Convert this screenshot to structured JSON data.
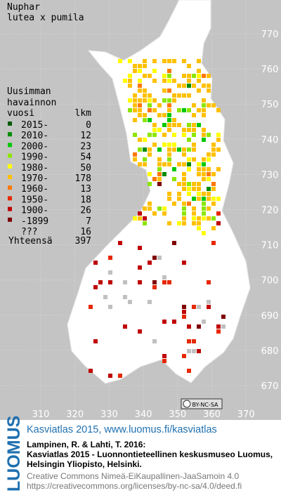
{
  "title": [
    "Nuphar",
    "lutea x pumila"
  ],
  "legend": {
    "header": [
      "Uusimman",
      "havainnon",
      "vuosi"
    ],
    "count_header": "lkm",
    "rows": [
      {
        "label": "2015-",
        "count": 0,
        "color": "#005a00"
      },
      {
        "label": "2010-",
        "count": 12,
        "color": "#008c00"
      },
      {
        "label": "2000-",
        "count": 23,
        "color": "#00c800"
      },
      {
        "label": "1990-",
        "count": 54,
        "color": "#8ce600"
      },
      {
        "label": "1980-",
        "count": 50,
        "color": "#ffff00"
      },
      {
        "label": "1970-",
        "count": 178,
        "color": "#ffc000"
      },
      {
        "label": "1960-",
        "count": 13,
        "color": "#ff7800"
      },
      {
        "label": "1950-",
        "count": 18,
        "color": "#e62800"
      },
      {
        "label": "1900-",
        "count": 26,
        "color": "#c00000"
      },
      {
        "label": "-1899",
        "count": 7,
        "color": "#800000"
      },
      {
        "label": "???",
        "count": 16,
        "color": "#c0c0c0"
      }
    ],
    "total_label": "Yhteensä",
    "total": 397
  },
  "map": {
    "x_ticks": [
      310,
      320,
      330,
      340,
      350,
      360,
      370
    ],
    "y_ticks": [
      670,
      680,
      690,
      700,
      710,
      720,
      730,
      740,
      750,
      760,
      770
    ]
  },
  "license_badge": "BY-NC-SA",
  "footer": {
    "logo": "LUOMUS",
    "link": "Kasviatlas 2015, www.luomus.fi/kasviatlas",
    "citation": [
      "Lampinen, R. & Lahti, T. 2016:",
      "Kasviatlas 2015 - Luonnontieteellinen keskusmuseo Luomus,",
      "Helsingin Yliopisto, Helsinki."
    ],
    "license": [
      "Creative Commons Nimeä-EiKaupallinen-JaaSamoin 4.0",
      "https://creativecommons.org/licenses/by-nc-sa/4.0/deed.fi"
    ]
  }
}
